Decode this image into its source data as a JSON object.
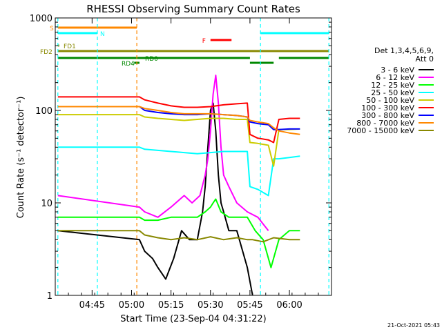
{
  "chart_data": {
    "type": "line",
    "title": "RHESSI Observing Summary Count Rates",
    "xlabel": "Start Time (23-Sep-04 04:31:22)",
    "ylabel": "Count Rate (s⁻¹ detector⁻¹)",
    "yscale": "log",
    "ylim": [
      1,
      1000
    ],
    "xlim": [
      "04:31",
      "06:16"
    ],
    "x_ticks": [
      "04:45",
      "05:00",
      "05:15",
      "05:30",
      "05:45",
      "06:00"
    ],
    "y_ticks": [
      "1",
      "10",
      "100",
      "1000"
    ],
    "grid": false,
    "legend_position": "right",
    "legend_title": [
      "Det 1,3,4,5,6,9,",
      "Att 0"
    ],
    "footer_timestamp": "21-Oct-2021 05:43",
    "series": [
      {
        "name": "3 - 6 keV",
        "color": "#000000",
        "x": [
          "04:32",
          "05:03",
          "05:05",
          "05:08",
          "05:10",
          "05:13",
          "05:16",
          "05:19",
          "05:22",
          "05:25",
          "05:27",
          "05:28",
          "05:29",
          "05:30",
          "05:31",
          "05:32",
          "05:33",
          "05:34",
          "05:35",
          "05:37",
          "05:40",
          "05:44",
          "05:46"
        ],
        "y": [
          5,
          4,
          3,
          2.5,
          2,
          1.5,
          2.5,
          5,
          4,
          4,
          8,
          15,
          40,
          100,
          120,
          60,
          20,
          10,
          8,
          5,
          5,
          2,
          1
        ]
      },
      {
        "name": "6 - 12 keV",
        "color": "#ff00ff",
        "x": [
          "04:32",
          "05:03",
          "05:05",
          "05:10",
          "05:15",
          "05:20",
          "05:23",
          "05:26",
          "05:28",
          "05:29",
          "05:30",
          "05:31",
          "05:32",
          "05:33",
          "05:34",
          "05:35",
          "05:37",
          "05:40",
          "05:44",
          "05:48",
          "05:52"
        ],
        "y": [
          12,
          9,
          8,
          7,
          9,
          12,
          10,
          12,
          20,
          30,
          60,
          150,
          240,
          120,
          40,
          20,
          15,
          10,
          8,
          7,
          5
        ]
      },
      {
        "name": "12 - 25 keV",
        "color": "#00ff00",
        "x": [
          "04:32",
          "05:03",
          "05:05",
          "05:10",
          "05:15",
          "05:20",
          "05:25",
          "05:28",
          "05:30",
          "05:31",
          "05:32",
          "05:34",
          "05:37",
          "05:40",
          "05:44",
          "05:47",
          "05:50",
          "05:53",
          "05:56",
          "06:00",
          "06:04"
        ],
        "y": [
          7,
          7,
          6.5,
          6.5,
          7,
          7,
          7,
          8,
          9,
          10,
          11,
          8,
          7,
          7,
          7,
          5,
          4,
          2,
          4,
          5,
          5
        ]
      },
      {
        "name": "25 - 50 keV",
        "color": "#00ffff",
        "x": [
          "04:32",
          "05:03",
          "05:05",
          "05:10",
          "05:15",
          "05:20",
          "05:25",
          "05:30",
          "05:35",
          "05:40",
          "05:44",
          "05:45",
          "05:48",
          "05:52",
          "05:54",
          "05:56",
          "06:00",
          "06:04"
        ],
        "y": [
          40,
          40,
          38,
          37,
          36,
          35,
          34,
          35,
          36,
          36,
          36,
          15,
          14,
          12,
          30,
          30,
          31,
          32
        ]
      },
      {
        "name": "50 - 100 keV",
        "color": "#cccc00",
        "x": [
          "04:32",
          "05:03",
          "05:05",
          "05:10",
          "05:15",
          "05:20",
          "05:25",
          "05:30",
          "05:35",
          "05:40",
          "05:44",
          "05:45",
          "05:48",
          "05:52",
          "05:54",
          "05:56",
          "06:00",
          "06:04"
        ],
        "y": [
          90,
          90,
          85,
          82,
          80,
          78,
          80,
          82,
          82,
          80,
          80,
          45,
          44,
          42,
          25,
          62,
          62,
          63
        ]
      },
      {
        "name": "100 - 300 keV",
        "color": "#ff0000",
        "x": [
          "04:32",
          "05:03",
          "05:05",
          "05:10",
          "05:15",
          "05:20",
          "05:25",
          "05:30",
          "05:35",
          "05:40",
          "05:44",
          "05:45",
          "05:48",
          "05:52",
          "05:54",
          "05:56",
          "06:00",
          "06:04"
        ],
        "y": [
          140,
          140,
          130,
          120,
          112,
          108,
          108,
          110,
          115,
          118,
          120,
          55,
          50,
          48,
          45,
          80,
          82,
          82
        ]
      },
      {
        "name": "300 - 800 keV",
        "color": "#0000ff",
        "x": [
          "04:32",
          "05:03",
          "05:05",
          "05:10",
          "05:15",
          "05:20",
          "05:25",
          "05:30",
          "05:35",
          "05:40",
          "05:44",
          "05:45",
          "05:48",
          "05:52",
          "05:54",
          "05:56",
          "06:00",
          "06:04"
        ],
        "y": [
          110,
          110,
          100,
          95,
          92,
          90,
          90,
          92,
          90,
          88,
          85,
          75,
          72,
          70,
          62,
          62,
          63,
          63
        ]
      },
      {
        "name": "800 - 7000 keV",
        "color": "#ff8800",
        "x": [
          "04:32",
          "05:03",
          "05:05",
          "05:10",
          "05:15",
          "05:20",
          "05:25",
          "05:30",
          "05:35",
          "05:40",
          "05:44",
          "05:45",
          "05:48",
          "05:52",
          "05:54",
          "05:56",
          "06:00",
          "06:04"
        ],
        "y": [
          110,
          110,
          105,
          100,
          95,
          92,
          92,
          92,
          90,
          88,
          85,
          78,
          75,
          72,
          65,
          60,
          57,
          55
        ]
      },
      {
        "name": "7000 - 15000 keV",
        "color": "#888800",
        "x": [
          "04:32",
          "05:03",
          "05:05",
          "05:10",
          "05:15",
          "05:20",
          "05:25",
          "05:30",
          "05:35",
          "05:40",
          "05:44",
          "05:46",
          "05:50",
          "05:54",
          "06:00",
          "06:04"
        ],
        "y": [
          5,
          5,
          4.5,
          4.2,
          4.0,
          4.2,
          4.0,
          4.3,
          4.0,
          4.2,
          4.0,
          4.0,
          3.8,
          4.2,
          4.0,
          4.0
        ]
      }
    ],
    "vertical_lines": [
      {
        "x": "04:32",
        "color": "#00ffff",
        "style": "dashed"
      },
      {
        "x": "04:47",
        "color": "#00ffff",
        "style": "dashed"
      },
      {
        "x": "05:02",
        "color": "#ff8800",
        "style": "dashed"
      },
      {
        "x": "05:49",
        "color": "#00ffff",
        "style": "dashed"
      },
      {
        "x": "06:15",
        "color": "#00ffff",
        "style": "dashed"
      }
    ],
    "flag_bars": [
      {
        "label": "S",
        "color": "#ff8800",
        "level": 0,
        "x_start": "04:32",
        "x_end": "05:02"
      },
      {
        "label": "N",
        "color": "#00ffff",
        "level": 1,
        "x_start": "04:32",
        "x_end": "04:47"
      },
      {
        "label": "N",
        "color": "#00ffff",
        "level": 1,
        "x_start": "05:49",
        "x_end": "06:15",
        "show_label": false
      },
      {
        "label": "F",
        "color": "#ff0000",
        "level": 2,
        "x_start": "05:30",
        "x_end": "05:38"
      },
      {
        "label": "FD1",
        "color": "#888800",
        "level": 3,
        "x_start": "04:32",
        "x_end": "04:32"
      },
      {
        "label": "FD2",
        "color": "#888800",
        "level": 4,
        "x_start": "04:32",
        "x_end": "06:15"
      },
      {
        "label": "RD0",
        "color": "#008800",
        "level": 5,
        "x_start": "04:32",
        "x_end": "05:45"
      },
      {
        "label": "RD0",
        "color": "#008800",
        "level": 5,
        "x_start": "05:56",
        "x_end": "06:15",
        "show_label": false
      },
      {
        "label": "RD4",
        "color": "#008800",
        "level": 6,
        "x_start": "05:01",
        "x_end": "05:03"
      },
      {
        "label": "RD4",
        "color": "#008800",
        "level": 6,
        "x_start": "05:45",
        "x_end": "05:54",
        "show_label": false
      }
    ]
  }
}
